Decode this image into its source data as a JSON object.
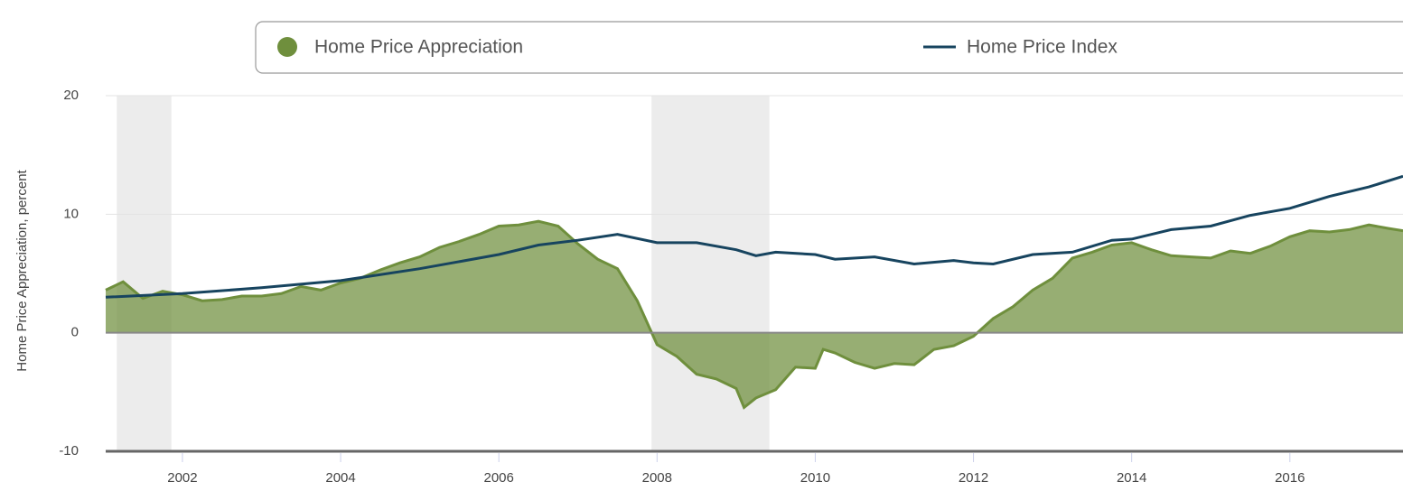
{
  "chart_data": {
    "type": "area",
    "y_label": "Home Price Appreciation, percent",
    "xlim": [
      2001.03,
      2017.43
    ],
    "xticks": [
      2002,
      2004,
      2006,
      2008,
      2010,
      2012,
      2014,
      2016
    ],
    "ylim": [
      -10,
      20
    ],
    "yticks": [
      -10,
      0,
      10,
      20
    ],
    "grid": true,
    "shaded_periods": [
      [
        2001.17,
        2001.86
      ],
      [
        2007.93,
        2009.42
      ]
    ],
    "series": [
      {
        "name": "Home Price Appreciation",
        "type": "area",
        "color": "#6f8f3d",
        "x": [
          2001.03,
          2001.25,
          2001.5,
          2001.75,
          2002,
          2002.25,
          2002.5,
          2002.75,
          2003,
          2003.25,
          2003.5,
          2003.75,
          2004,
          2004.25,
          2004.5,
          2004.75,
          2005,
          2005.25,
          2005.5,
          2005.75,
          2006,
          2006.25,
          2006.5,
          2006.75,
          2007,
          2007.25,
          2007.5,
          2007.75,
          2008,
          2008.25,
          2008.5,
          2008.75,
          2009,
          2009.1,
          2009.25,
          2009.5,
          2009.75,
          2010,
          2010.1,
          2010.25,
          2010.5,
          2010.75,
          2011,
          2011.25,
          2011.5,
          2011.75,
          2012,
          2012.25,
          2012.5,
          2012.75,
          2013,
          2013.25,
          2013.5,
          2013.75,
          2014,
          2014.25,
          2014.5,
          2014.75,
          2015,
          2015.25,
          2015.5,
          2015.75,
          2016,
          2016.25,
          2016.5,
          2016.75,
          2017,
          2017.25,
          2017.43
        ],
        "values": [
          3.6,
          4.3,
          2.9,
          3.5,
          3.2,
          2.7,
          2.8,
          3.1,
          3.1,
          3.3,
          3.9,
          3.6,
          4.2,
          4.6,
          5.3,
          5.9,
          6.4,
          7.2,
          7.7,
          8.3,
          9.0,
          9.1,
          9.4,
          9.0,
          7.5,
          6.2,
          5.4,
          2.7,
          -1.0,
          -2.0,
          -3.5,
          -3.9,
          -4.7,
          -6.3,
          -5.5,
          -4.8,
          -2.9,
          -3.0,
          -1.4,
          -1.7,
          -2.5,
          -3.0,
          -2.6,
          -2.7,
          -1.4,
          -1.1,
          -0.3,
          1.2,
          2.2,
          3.6,
          4.6,
          6.3,
          6.8,
          7.4,
          7.6,
          7.0,
          6.5,
          6.4,
          6.3,
          6.9,
          6.7,
          7.3,
          8.1,
          8.6,
          8.5,
          8.7,
          9.1,
          8.8,
          8.6
        ]
      },
      {
        "name": "Home Price Index",
        "type": "line",
        "color": "#17445f",
        "x": [
          2001.03,
          2002,
          2003,
          2004,
          2005,
          2006,
          2006.5,
          2007,
          2007.5,
          2008,
          2008.5,
          2009,
          2009.25,
          2009.5,
          2010,
          2010.25,
          2010.75,
          2011.25,
          2011.75,
          2012,
          2012.25,
          2012.75,
          2013.25,
          2013.75,
          2014,
          2014.5,
          2015,
          2015.5,
          2016,
          2016.5,
          2017,
          2017.43
        ],
        "values": [
          3.0,
          3.3,
          3.8,
          4.4,
          5.4,
          6.6,
          7.4,
          7.8,
          8.3,
          7.6,
          7.6,
          7.0,
          6.5,
          6.8,
          6.6,
          6.2,
          6.4,
          5.8,
          6.1,
          5.9,
          5.8,
          6.6,
          6.8,
          7.8,
          7.9,
          8.7,
          9.0,
          9.9,
          10.5,
          11.5,
          12.3,
          13.2
        ]
      }
    ]
  }
}
